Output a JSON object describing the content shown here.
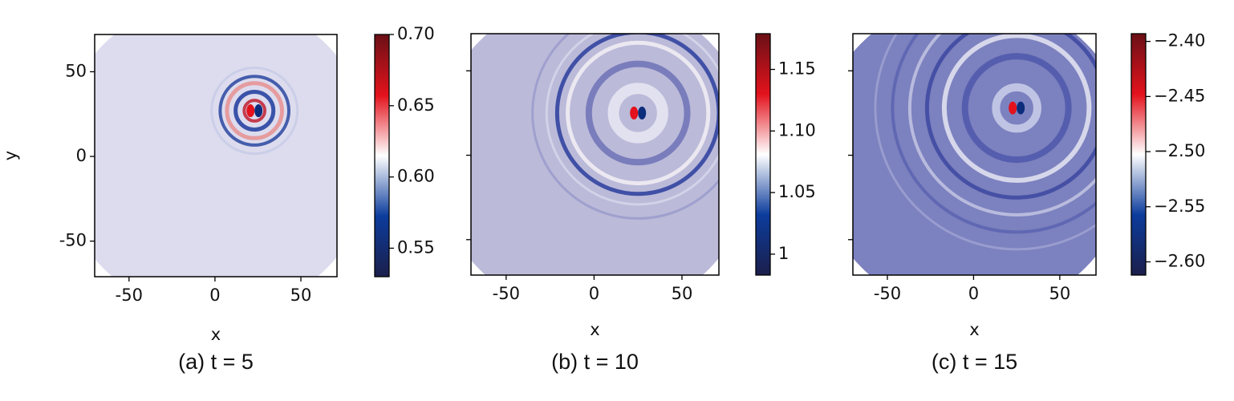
{
  "chart_data": [
    {
      "type": "heatmap",
      "caption": "(a) t = 5",
      "xlabel": "x",
      "ylabel": "y",
      "xlim": [
        -70,
        71
      ],
      "ylim": [
        -71,
        72
      ],
      "xticks": [
        -50,
        0,
        50
      ],
      "yticks": [
        -50,
        0,
        50
      ],
      "show_ytick_labels": true,
      "colormap": [
        "#1b1f4b",
        "#0c3c9c",
        "#ffffff",
        "#e3121c",
        "#6a1016"
      ],
      "colorbar": {
        "lim": [
          0.53,
          0.7
        ],
        "ticks": [
          0.55,
          0.6,
          0.65,
          0.7
        ]
      }
    },
    {
      "type": "heatmap",
      "caption": "(b) t = 10",
      "xlabel": "x",
      "xlim": [
        -70,
        71
      ],
      "ylim": [
        -71,
        72
      ],
      "xticks": [
        -50,
        0,
        50
      ],
      "yticks": [
        -50,
        0,
        50
      ],
      "show_ytick_labels": false,
      "colormap": [
        "#1b1f4b",
        "#0c3c9c",
        "#ffffff",
        "#e3121c",
        "#6a1016"
      ],
      "colorbar": {
        "lim": [
          0.983,
          1.179
        ],
        "ticks": [
          1.0,
          1.05,
          1.1,
          1.15
        ]
      }
    },
    {
      "type": "heatmap",
      "caption": "(c) t = 15",
      "xlabel": "x",
      "xlim": [
        -70,
        71
      ],
      "ylim": [
        -71,
        72
      ],
      "xticks": [
        -50,
        0,
        50
      ],
      "yticks": [
        -50,
        0,
        50
      ],
      "show_ytick_labels": false,
      "colormap": [
        "#1b1f4b",
        "#0c3c9c",
        "#ffffff",
        "#e3121c",
        "#6a1016"
      ],
      "colorbar": {
        "lim": [
          -2.612,
          -2.393
        ],
        "ticks": [
          {
            "value": -2.6,
            "label": "−2.60"
          },
          {
            "value": -2.55,
            "label": "−2.55"
          },
          {
            "value": -2.5,
            "label": "−2.50"
          },
          {
            "value": -2.45,
            "label": "−2.45"
          },
          {
            "value": -2.4,
            "label": "−2.40"
          }
        ]
      }
    }
  ]
}
